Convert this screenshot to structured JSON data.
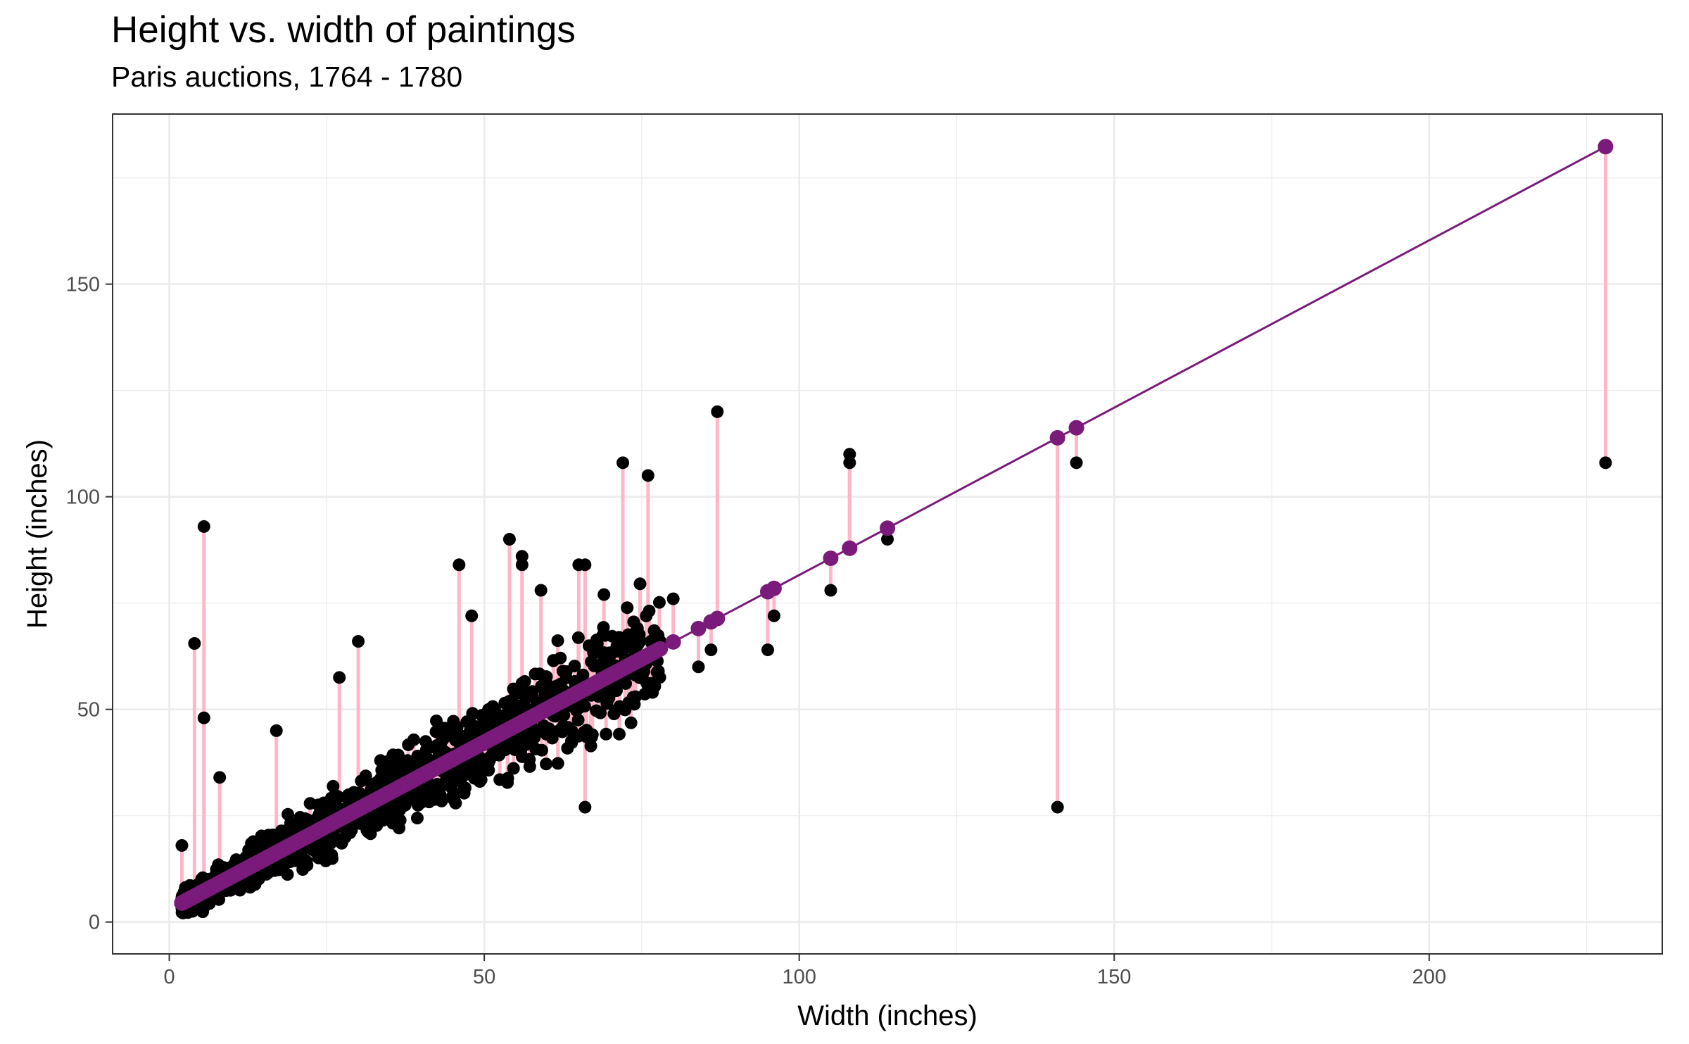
{
  "chart_data": {
    "type": "scatter",
    "title": "Height vs. width of paintings",
    "subtitle": "Paris auctions, 1764 - 1780",
    "xlabel": "Width (inches)",
    "ylabel": "Height (inches)",
    "xlim": [
      -9,
      237
    ],
    "ylim": [
      -7.5,
      190
    ],
    "x_ticks": [
      0,
      50,
      100,
      150,
      200
    ],
    "x_tick_labels": [
      "0",
      "50",
      "100",
      "150",
      "200"
    ],
    "y_ticks": [
      0,
      50,
      100,
      150
    ],
    "y_tick_labels": [
      "0",
      "50",
      "100",
      "150"
    ],
    "grid": true,
    "legend": "none",
    "fit_line": {
      "intercept": 2.9,
      "slope": 0.787
    },
    "colors": {
      "points": "#000000",
      "fitted": "#7a1a7a",
      "residuals": "#ffb6c8",
      "grid": "#ebebeb",
      "border": "#333333"
    },
    "cluster": {
      "x_range": [
        2,
        78
      ],
      "n": 1500,
      "note": "dense cloud of paintings around the fitted line"
    },
    "notable_points": [
      {
        "x": 2,
        "y": 18
      },
      {
        "x": 4,
        "y": 65.5
      },
      {
        "x": 5.5,
        "y": 48
      },
      {
        "x": 5.5,
        "y": 93
      },
      {
        "x": 8,
        "y": 34
      },
      {
        "x": 17,
        "y": 45
      },
      {
        "x": 27,
        "y": 57.5
      },
      {
        "x": 30,
        "y": 66
      },
      {
        "x": 46,
        "y": 84
      },
      {
        "x": 48,
        "y": 72
      },
      {
        "x": 54,
        "y": 90
      },
      {
        "x": 56,
        "y": 86
      },
      {
        "x": 56,
        "y": 84
      },
      {
        "x": 59,
        "y": 78
      },
      {
        "x": 65,
        "y": 84
      },
      {
        "x": 66,
        "y": 84
      },
      {
        "x": 66,
        "y": 27
      },
      {
        "x": 69,
        "y": 77
      },
      {
        "x": 72,
        "y": 108
      },
      {
        "x": 76,
        "y": 105
      },
      {
        "x": 80,
        "y": 76
      },
      {
        "x": 84,
        "y": 60
      },
      {
        "x": 86,
        "y": 64
      },
      {
        "x": 87,
        "y": 120
      },
      {
        "x": 95,
        "y": 64
      },
      {
        "x": 96,
        "y": 72
      },
      {
        "x": 105,
        "y": 78
      },
      {
        "x": 108,
        "y": 108
      },
      {
        "x": 108,
        "y": 110
      },
      {
        "x": 114,
        "y": 90
      },
      {
        "x": 141,
        "y": 27
      },
      {
        "x": 144,
        "y": 108
      },
      {
        "x": 228,
        "y": 108
      }
    ]
  }
}
